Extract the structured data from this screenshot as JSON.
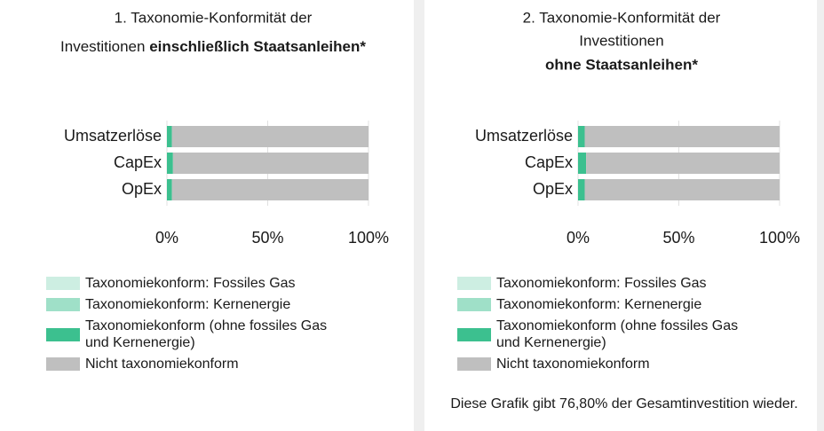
{
  "chart_data": [
    {
      "type": "stacked_bar_horizontal",
      "title_lines": [
        "1. Taxonomie-Konformität der",
        "Investitionen"
      ],
      "title_bold": "einschließlich Staatsanleihen*",
      "categories": [
        "Umsatzerlöse",
        "CapEx",
        "OpEx"
      ],
      "series": [
        {
          "name": "Taxonomiekonform: Fossiles Gas",
          "color": "#cdeee2",
          "values": [
            0,
            0,
            0
          ]
        },
        {
          "name": "Taxonomiekonform: Kernenergie",
          "color": "#9fe0c8",
          "values": [
            0,
            0,
            0
          ]
        },
        {
          "name": "Taxonomiekonform (ohne fossiles Gas und Kernenergie)",
          "color": "#3cc08f",
          "values": [
            2.5,
            3,
            2.5
          ]
        },
        {
          "name": "Nicht taxonomiekonform",
          "color": "#bfbfbf",
          "values": [
            97.5,
            97,
            97.5
          ]
        }
      ],
      "xlim": [
        0,
        100
      ],
      "xticks": [
        {
          "value": 0,
          "label": "0%"
        },
        {
          "value": 50,
          "label": "50%"
        },
        {
          "value": 100,
          "label": "100%"
        }
      ],
      "grid": true
    },
    {
      "type": "stacked_bar_horizontal",
      "title_lines": [
        "2. Taxonomie-Konformität der",
        "Investitionen"
      ],
      "title_bold": "ohne Staatsanleihen*",
      "categories": [
        "Umsatzerlöse",
        "CapEx",
        "OpEx"
      ],
      "series": [
        {
          "name": "Taxonomiekonform: Fossiles Gas",
          "color": "#cdeee2",
          "values": [
            0,
            0,
            0
          ]
        },
        {
          "name": "Taxonomiekonform: Kernenergie",
          "color": "#9fe0c8",
          "values": [
            0,
            0,
            0
          ]
        },
        {
          "name": "Taxonomiekonform (ohne fossiles Gas und Kernenergie)",
          "color": "#3cc08f",
          "values": [
            3.3,
            4,
            3.3
          ]
        },
        {
          "name": "Nicht taxonomiekonform",
          "color": "#bfbfbf",
          "values": [
            96.7,
            96,
            96.7
          ]
        }
      ],
      "xlim": [
        0,
        100
      ],
      "xticks": [
        {
          "value": 0,
          "label": "0%"
        },
        {
          "value": 50,
          "label": "50%"
        },
        {
          "value": 100,
          "label": "100%"
        }
      ],
      "grid": true,
      "note": "Diese Grafik gibt 76,80% der Gesamtinvestition wieder."
    }
  ]
}
